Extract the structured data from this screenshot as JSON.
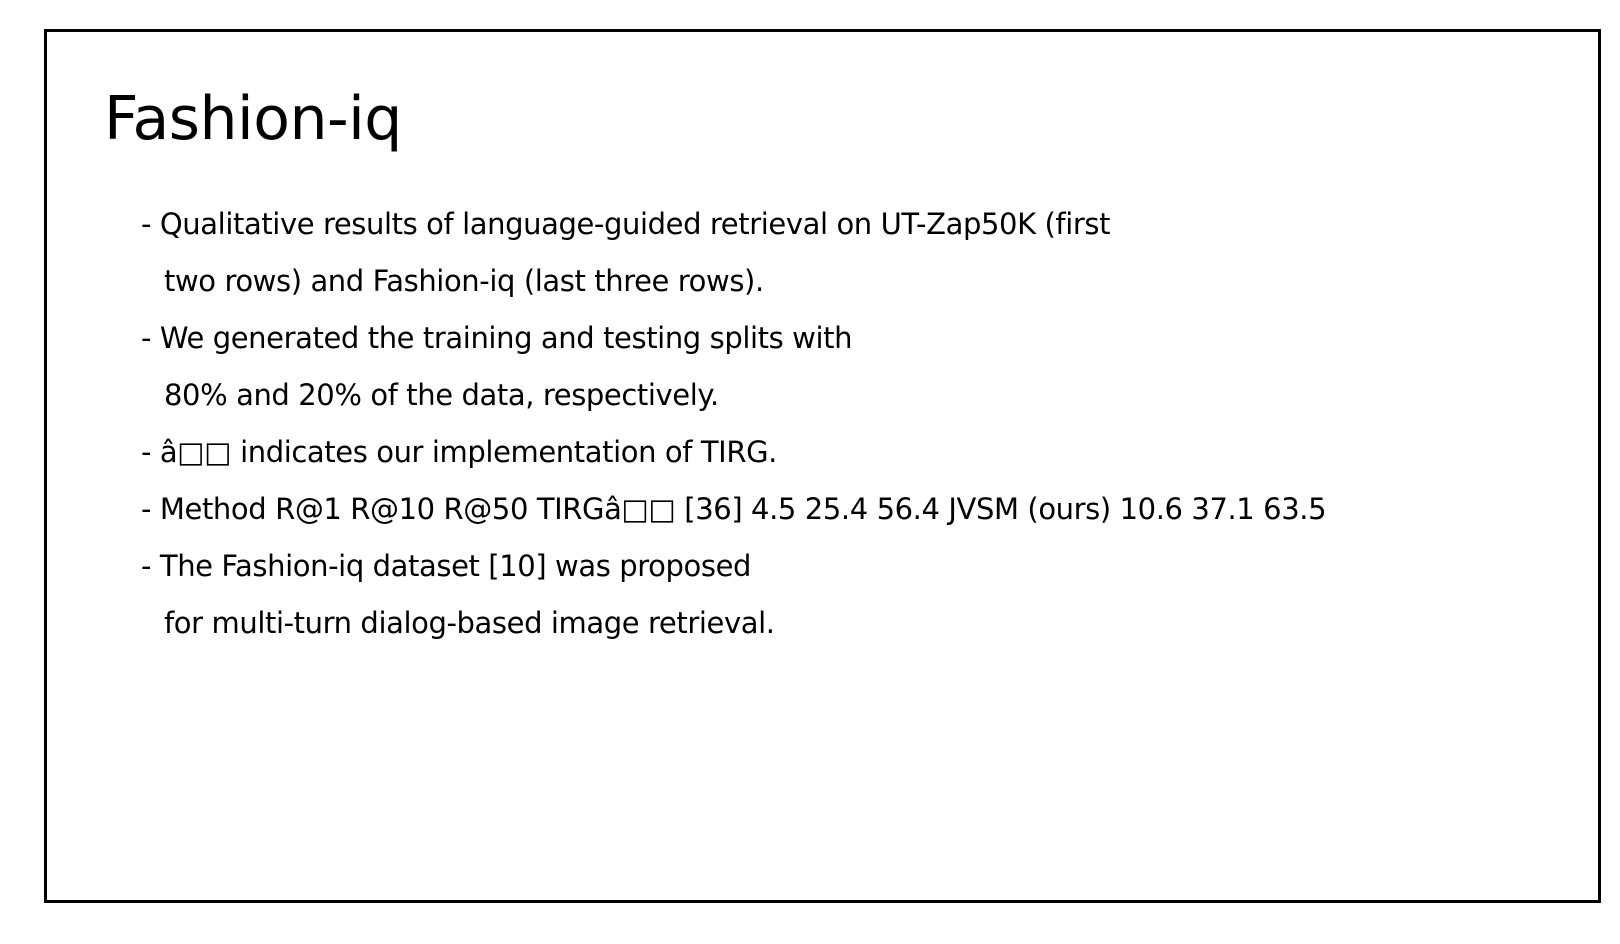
{
  "slide": {
    "title": "Fashion-iq",
    "lines": [
      {
        "text": "- Qualitative results of language-guided retrieval on UT-Zap50K (first",
        "continuation": false
      },
      {
        "text": "two rows) and Fashion-iq (last three rows).",
        "continuation": true
      },
      {
        "text": "- We generated the training and testing splits with",
        "continuation": false
      },
      {
        "text": "80% and 20% of the data, respectively.",
        "continuation": true
      },
      {
        "text": "- â□□ indicates our implementation of TIRG.",
        "continuation": false
      },
      {
        "text": "- Method R@1 R@10 R@50 TIRGâ□□ [36] 4.5 25.4 56.4 JVSM (ours) 10.6 37.1 63.5",
        "continuation": false
      },
      {
        "text": "- The Fashion-iq dataset [10] was proposed",
        "continuation": false
      },
      {
        "text": "for multi-turn dialog-based image retrieval.",
        "continuation": true
      }
    ]
  }
}
